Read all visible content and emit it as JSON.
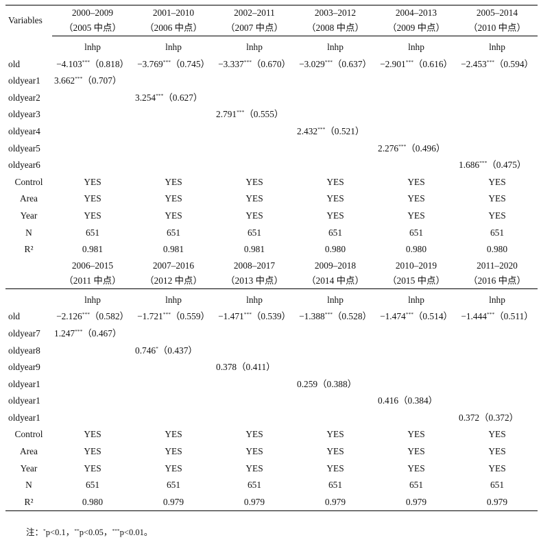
{
  "header_label": "Variables",
  "dep_var": "lnhp",
  "panels": [
    {
      "periods": [
        "2000–2009",
        "2001–2010",
        "2002–2011",
        "2003–2012",
        "2004–2013",
        "2005–2014"
      ],
      "midpoints": [
        "（2005 中点）",
        "（2006 中点）",
        "（2007 中点）",
        "（2008 中点）",
        "（2009 中点）",
        "（2010 中点）"
      ],
      "old": [
        {
          "coef": "−4.103",
          "stars": "***",
          "se": "（0.818）"
        },
        {
          "coef": "−3.769",
          "stars": "***",
          "se": "（0.745）"
        },
        {
          "coef": "−3.337",
          "stars": "***",
          "se": "（0.670）"
        },
        {
          "coef": "−3.029",
          "stars": "***",
          "se": "（0.637）"
        },
        {
          "coef": "−2.901",
          "stars": "***",
          "se": "（0.616）"
        },
        {
          "coef": "−2.453",
          "stars": "***",
          "se": "（0.594）"
        }
      ],
      "oldyear": [
        {
          "name": "oldyear1",
          "coef": "3.662",
          "stars": "***",
          "se": "（0.707）"
        },
        {
          "name": "oldyear2",
          "coef": "3.254",
          "stars": "***",
          "se": "（0.627）"
        },
        {
          "name": "oldyear3",
          "coef": "2.791",
          "stars": "***",
          "se": "（0.555）"
        },
        {
          "name": "oldyear4",
          "coef": "2.432",
          "stars": "***",
          "se": "（0.521）"
        },
        {
          "name": "oldyear5",
          "coef": "2.276",
          "stars": "***",
          "se": "（0.496）"
        },
        {
          "name": "oldyear6",
          "coef": "1.686",
          "stars": "***",
          "se": "（0.475）"
        }
      ],
      "r2": [
        "0.981",
        "0.981",
        "0.981",
        "0.980",
        "0.980",
        "0.980"
      ]
    },
    {
      "periods": [
        "2006–2015",
        "2007–2016",
        "2008–2017",
        "2009–2018",
        "2010–2019",
        "2011–2020"
      ],
      "midpoints": [
        "（2011 中点）",
        "（2012 中点）",
        "（2013 中点）",
        "（2014 中点）",
        "（2015 中点）",
        "（2016 中点）"
      ],
      "old": [
        {
          "coef": "−2.126",
          "stars": "***",
          "se": "（0.582）"
        },
        {
          "coef": "−1.721",
          "stars": "***",
          "se": "（0.559）"
        },
        {
          "coef": "−1.471",
          "stars": "***",
          "se": "（0.539）"
        },
        {
          "coef": "−1.388",
          "stars": "***",
          "se": "（0.528）"
        },
        {
          "coef": "−1.474",
          "stars": "***",
          "se": "（0.514）"
        },
        {
          "coef": "−1.444",
          "stars": "***",
          "se": "（0.511）"
        }
      ],
      "oldyear": [
        {
          "name": "oldyear7",
          "coef": "1.247",
          "stars": "***",
          "se": "（0.467）"
        },
        {
          "name": "oldyear8",
          "coef": "0.746",
          "stars": "*",
          "se": "（0.437）"
        },
        {
          "name": "oldyear9",
          "coef": "0.378",
          "stars": "",
          "se": "（0.411）"
        },
        {
          "name": "oldyear1",
          "coef": "0.259",
          "stars": "",
          "se": "（0.388）"
        },
        {
          "name": "oldyear1",
          "coef": "0.416",
          "stars": "",
          "se": "（0.384）"
        },
        {
          "name": "oldyear1",
          "coef": "0.372",
          "stars": "",
          "se": "（0.372）"
        }
      ],
      "r2": [
        "0.980",
        "0.979",
        "0.979",
        "0.979",
        "0.979",
        "0.979"
      ]
    }
  ],
  "row_labels": {
    "old": "old",
    "control": "Control",
    "area": "Area",
    "year": "Year",
    "n": "N",
    "r2": "R²"
  },
  "yes": "YES",
  "n_value": "651",
  "note": {
    "prefix": "注：",
    "s1": "*",
    "t1": "p<0.1，",
    "s2": "**",
    "t2": "p<0.05，",
    "s3": "***",
    "t3": "p<0.01。"
  }
}
